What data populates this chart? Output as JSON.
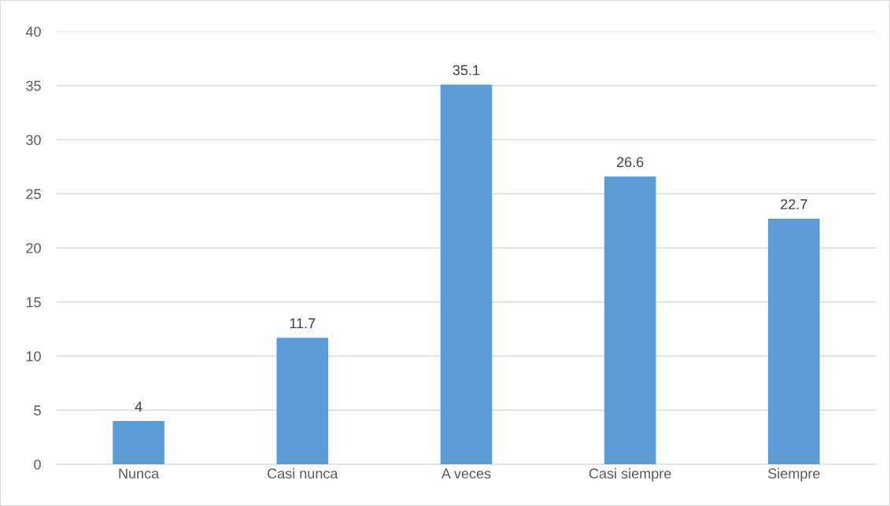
{
  "chart_data": {
    "type": "bar",
    "categories": [
      "Nunca",
      "Casi nunca",
      "A veces",
      "Casi siempre",
      "Siempre"
    ],
    "values": [
      4,
      11.7,
      35.1,
      26.6,
      22.7
    ],
    "color": "#5b9bd5",
    "ylim": [
      0,
      40
    ],
    "yticks": [
      0,
      5,
      10,
      15,
      20,
      25,
      30,
      35,
      40
    ],
    "grid": "y",
    "data_labels": true
  }
}
